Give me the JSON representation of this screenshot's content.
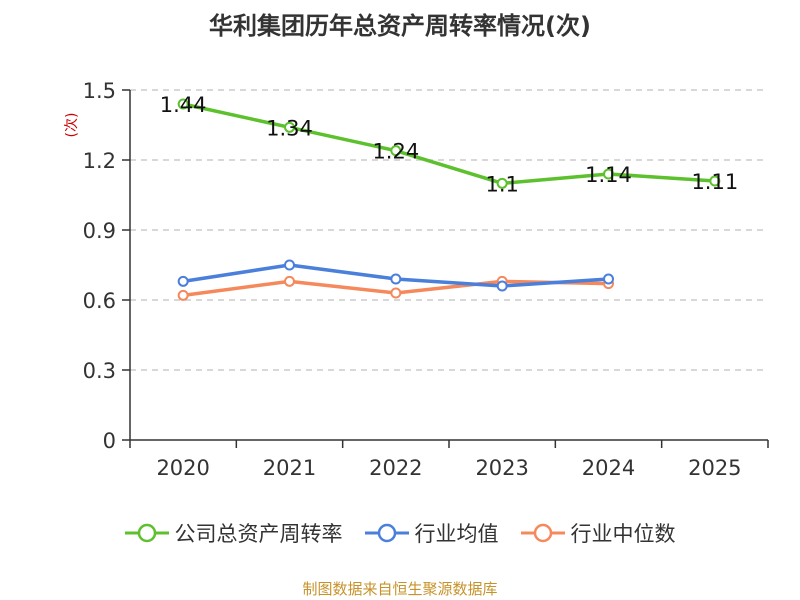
{
  "title": "华利集团历年总资产周转率情况(次)",
  "source": "制图数据来自恒生聚源数据库",
  "colors": {
    "series_1": "#5cc12d",
    "series_2": "#4a7fdb",
    "series_3": "#f5895c",
    "grid": "#cccccc",
    "axis": "#333333",
    "ylabel": "#cc0000"
  },
  "chart_data": {
    "type": "line",
    "title": "华利集团历年总资产周转率情况(次)",
    "xlabel": "",
    "ylabel": "(次)",
    "categories": [
      "2020",
      "2021",
      "2022",
      "2023",
      "2024",
      "2025"
    ],
    "ylim": [
      0,
      1.5
    ],
    "yticks": [
      "0",
      "0.3",
      "0.6",
      "0.9",
      "1.2",
      "1.5"
    ],
    "grid": true,
    "legend_position": "bottom",
    "series": [
      {
        "name": "公司总资产周转率",
        "values": [
          1.44,
          1.34,
          1.24,
          1.1,
          1.14,
          1.11
        ],
        "labels": [
          "1.44",
          "1.34",
          "1.24",
          "1.1",
          "1.14",
          "1.11"
        ]
      },
      {
        "name": "行业均值",
        "values": [
          0.68,
          0.75,
          0.69,
          0.66,
          0.69,
          null
        ]
      },
      {
        "name": "行业中位数",
        "values": [
          0.62,
          0.68,
          0.63,
          0.68,
          0.67,
          null
        ]
      }
    ]
  }
}
